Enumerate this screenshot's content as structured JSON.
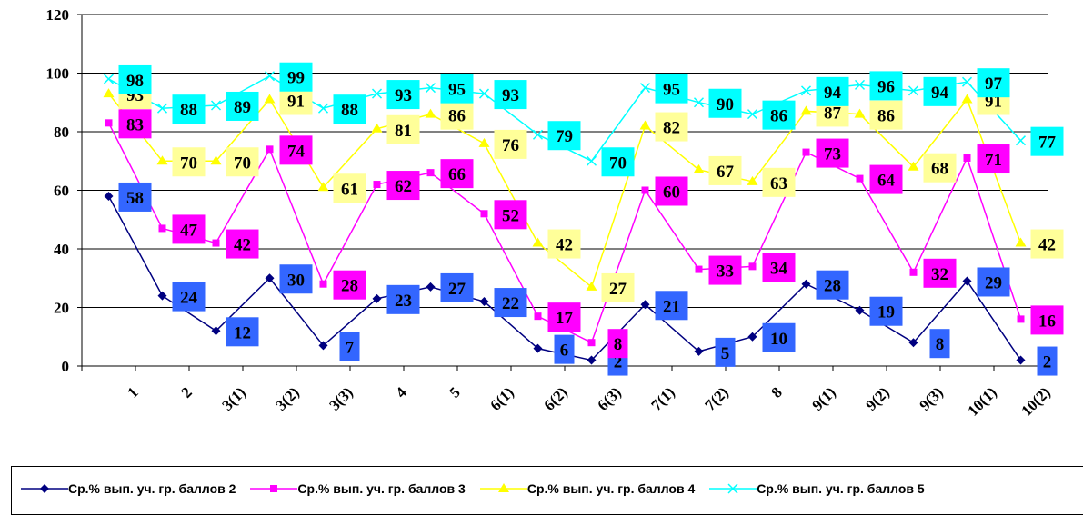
{
  "chart_data": {
    "type": "line",
    "title": "",
    "xlabel": "",
    "ylabel": "",
    "ylim": [
      0,
      120
    ],
    "yticks": [
      "0",
      "20",
      "40",
      "60",
      "80",
      "100",
      "120"
    ],
    "grid": "horizontal",
    "legend_position": "bottom",
    "categories": [
      "1",
      "2",
      "3(1)",
      "3(2)",
      "3(3)",
      "4",
      "5",
      "6(1)",
      "6(2)",
      "6(3)",
      "7(1)",
      "7(2)",
      "8",
      "9(1)",
      "9(2)",
      "9(3)",
      "10(1)",
      "10(2)"
    ],
    "series": [
      {
        "name": "Ср.% вып. уч. гр. баллов 2",
        "color": "#000080",
        "marker": "diamond",
        "points": [
          58,
          24,
          12,
          30,
          7,
          23,
          27,
          22,
          6,
          2,
          21,
          5,
          10,
          28,
          19,
          8,
          29,
          2
        ],
        "labels": [
          "58",
          "24",
          "12",
          "30",
          "7",
          "23",
          "27",
          "22",
          "6",
          "2",
          "21",
          "5",
          "10",
          "28",
          "19",
          "8",
          "29",
          "2"
        ],
        "label_bg": "#3366ff"
      },
      {
        "name": "Ср.% вып. уч. гр. баллов 3",
        "color": "#ff00ff",
        "marker": "square",
        "points": [
          83,
          47,
          42,
          74,
          28,
          62,
          66,
          52,
          17,
          8,
          60,
          33,
          34,
          73,
          64,
          32,
          71,
          16
        ],
        "labels": [
          "83",
          "47",
          "42",
          "74",
          "28",
          "62",
          "66",
          "52",
          "17",
          "8",
          "60",
          "33",
          "34",
          "73",
          "64",
          "32",
          "71",
          "16"
        ],
        "label_bg": "#ff00ff"
      },
      {
        "name": "Ср.% вып. уч. гр. баллов 4",
        "color": "#ffff00",
        "marker": "triangle",
        "points": [
          93,
          70,
          70,
          91,
          61,
          81,
          86,
          76,
          42,
          27,
          82,
          67,
          63,
          87,
          86,
          68,
          91,
          42
        ],
        "labels": [
          "93",
          "70",
          "70",
          "91",
          "61",
          "81",
          "86",
          "76",
          "42",
          "27",
          "82",
          "67",
          "63",
          "87",
          "86",
          "68",
          "91",
          "42"
        ],
        "label_bg": "#ffff99"
      },
      {
        "name": "Ср.% вып. уч. гр. баллов 5",
        "color": "#00ffff",
        "marker": "x",
        "points": [
          98,
          88,
          89,
          99,
          88,
          93,
          95,
          93,
          79,
          70,
          95,
          90,
          86,
          94,
          96,
          94,
          97,
          77
        ],
        "labels": [
          "98",
          "88",
          "89",
          "99",
          "88",
          "93",
          "95",
          "93",
          "79",
          "70",
          "95",
          "90",
          "86",
          "94",
          "96",
          "94",
          "97",
          "77"
        ],
        "label_bg": "#00ffff"
      }
    ]
  }
}
